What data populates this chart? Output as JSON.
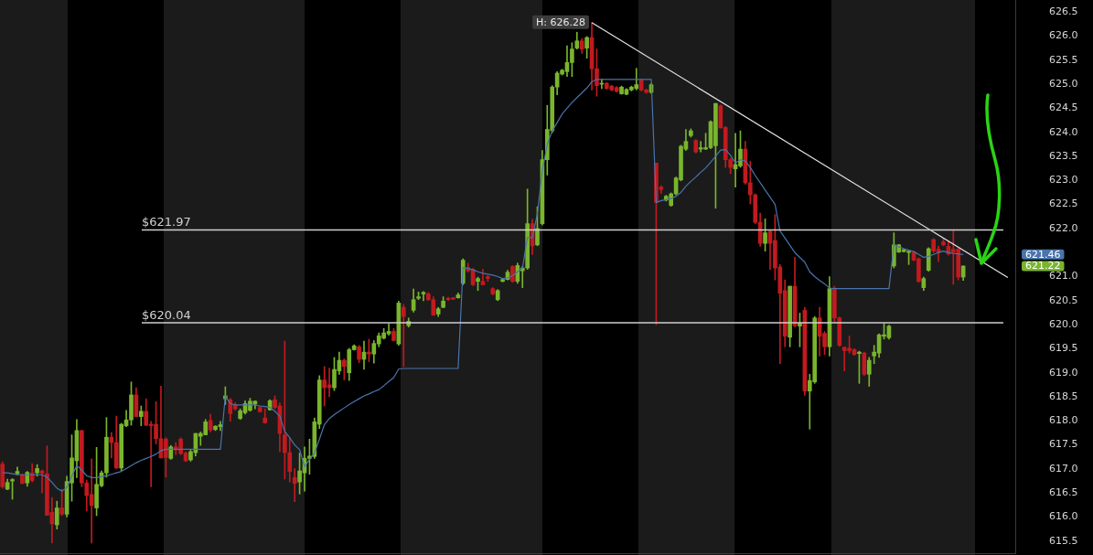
{
  "chart_data": {
    "type": "candlestick",
    "categories": [
      null,
      null,
      null,
      null,
      null,
      null,
      null,
      null,
      null,
      null,
      null,
      null,
      null,
      null,
      null,
      null,
      null,
      null,
      null,
      null,
      null,
      null,
      null,
      null,
      null,
      null,
      null,
      null,
      null,
      null,
      null,
      null,
      null,
      null,
      null,
      null,
      null,
      null,
      null,
      null,
      null,
      null,
      null,
      null,
      null,
      null,
      null,
      null,
      null,
      null,
      null,
      null,
      null,
      null,
      null,
      null,
      null,
      null,
      null,
      null,
      null,
      null,
      null,
      null,
      null,
      null,
      null,
      null,
      null,
      null,
      null,
      null,
      null,
      null,
      null,
      null,
      null,
      null,
      null,
      null,
      null,
      null,
      null,
      null,
      null,
      null,
      null,
      null,
      null,
      null,
      null,
      null,
      null,
      null,
      null,
      null,
      null,
      null,
      null,
      null,
      null,
      null,
      null,
      null,
      null,
      null,
      null,
      null,
      null,
      null,
      null,
      null,
      null,
      null,
      null,
      null,
      null,
      null,
      null,
      null,
      null,
      null,
      null,
      null,
      null,
      null,
      null,
      null,
      null,
      null,
      null,
      null,
      null,
      null,
      null,
      null,
      null,
      null,
      null,
      null,
      null,
      null,
      null,
      null,
      null,
      null,
      null,
      null,
      null,
      null,
      null,
      null,
      null,
      null,
      null,
      null,
      null,
      null,
      null,
      null,
      null,
      null,
      null,
      null,
      null,
      null,
      null,
      null,
      null,
      null,
      null,
      null,
      null,
      null,
      null,
      null,
      null,
      null,
      null,
      null,
      null,
      null,
      null,
      null,
      null,
      null,
      null,
      null,
      null,
      null,
      null,
      null,
      null,
      null,
      null,
      null,
      null,
      null,
      null,
      null,
      null,
      null,
      null,
      null,
      null
    ],
    "ohlc": [
      [
        617.1,
        617.15,
        616.6,
        616.63
      ],
      [
        616.58,
        616.79,
        616.57,
        616.72
      ],
      [
        616.75,
        616.8,
        616.37,
        616.78
      ],
      [
        616.9,
        617.04,
        616.88,
        616.95
      ],
      [
        616.88,
        616.9,
        616.69,
        616.7
      ],
      [
        616.71,
        616.95,
        616.64,
        616.93
      ],
      [
        616.92,
        617.11,
        616.73,
        616.76
      ],
      [
        616.92,
        617.09,
        616.85,
        617.01
      ],
      [
        616.96,
        616.98,
        616.5,
        616.91
      ],
      [
        616.9,
        617.48,
        616.04,
        616.04
      ],
      [
        616.1,
        616.41,
        615.46,
        615.86
      ],
      [
        615.84,
        616.33,
        615.75,
        616.19
      ],
      [
        616.19,
        616.58,
        616.03,
        616.06
      ],
      [
        616.06,
        616.85,
        616.0,
        616.74
      ],
      [
        616.71,
        617.71,
        616.33,
        617.23
      ],
      [
        617.17,
        618.03,
        616.82,
        617.8
      ],
      [
        617.8,
        617.8,
        616.63,
        616.71
      ],
      [
        616.71,
        616.77,
        616.13,
        616.45
      ],
      [
        616.47,
        617.21,
        615.46,
        616.24
      ],
      [
        616.19,
        617.45,
        616.03,
        616.68
      ],
      [
        616.65,
        616.96,
        616.63,
        616.92
      ],
      [
        616.92,
        618.07,
        616.83,
        617.66
      ],
      [
        617.66,
        617.76,
        617.23,
        617.55
      ],
      [
        617.55,
        618.1,
        617.01,
        617.02
      ],
      [
        617.02,
        617.95,
        616.96,
        617.93
      ],
      [
        617.9,
        618.22,
        617.88,
        618.02
      ],
      [
        618.02,
        618.81,
        617.91,
        618.54
      ],
      [
        618.54,
        618.69,
        618.09,
        618.09
      ],
      [
        618.09,
        618.31,
        617.9,
        618.2
      ],
      [
        618.2,
        618.46,
        617.9,
        617.91
      ],
      [
        617.93,
        617.99,
        616.63,
        617.9
      ],
      [
        617.93,
        618.4,
        617.52,
        617.63
      ],
      [
        617.63,
        618.72,
        617.23,
        617.23
      ],
      [
        617.62,
        617.65,
        616.83,
        617.24
      ],
      [
        617.22,
        617.49,
        617.2,
        617.46
      ],
      [
        617.46,
        617.55,
        617.3,
        617.4
      ],
      [
        617.62,
        617.65,
        617.3,
        617.32
      ],
      [
        617.33,
        617.36,
        617.15,
        617.17
      ],
      [
        617.19,
        617.39,
        617.16,
        617.36
      ],
      [
        617.34,
        617.74,
        617.27,
        617.74
      ],
      [
        617.68,
        617.77,
        617.49,
        617.74
      ],
      [
        617.71,
        618.03,
        617.71,
        617.98
      ],
      [
        618.01,
        618.14,
        617.77,
        617.81
      ],
      [
        617.82,
        617.9,
        617.8,
        617.89
      ],
      [
        617.88,
        617.99,
        617.8,
        617.92
      ],
      [
        618.46,
        618.71,
        618.34,
        618.52
      ],
      [
        618.44,
        618.47,
        617.99,
        618.15
      ],
      [
        618.34,
        618.38,
        618.22,
        618.25
      ],
      [
        618.05,
        618.25,
        618.03,
        618.21
      ],
      [
        618.17,
        618.42,
        618.14,
        618.36
      ],
      [
        618.22,
        618.47,
        618.2,
        618.41
      ],
      [
        618.35,
        618.42,
        618.25,
        618.41
      ],
      [
        618.28,
        618.3,
        618.18,
        618.19
      ],
      [
        618.06,
        618.25,
        617.95,
        617.96
      ],
      [
        618.23,
        618.44,
        618.22,
        618.42
      ],
      [
        618.44,
        618.52,
        618.25,
        618.28
      ],
      [
        618.31,
        618.37,
        617.36,
        617.74
      ],
      [
        617.71,
        619.66,
        616.79,
        617.34
      ],
      [
        617.34,
        617.65,
        616.73,
        616.95
      ],
      [
        616.82,
        617.01,
        616.32,
        616.7
      ],
      [
        616.73,
        617.33,
        616.48,
        616.96
      ],
      [
        616.92,
        617.46,
        616.54,
        617.22
      ],
      [
        617.22,
        617.62,
        616.89,
        617.27
      ],
      [
        617.26,
        618.06,
        617.22,
        617.98
      ],
      [
        617.93,
        618.94,
        617.84,
        618.85
      ],
      [
        618.85,
        619.13,
        618.31,
        618.69
      ],
      [
        618.75,
        619.1,
        618.5,
        618.69
      ],
      [
        618.69,
        619.32,
        618.63,
        619.07
      ],
      [
        619.04,
        619.43,
        618.97,
        619.26
      ],
      [
        619.26,
        619.29,
        618.85,
        619.13
      ],
      [
        619.0,
        619.51,
        618.84,
        619.48
      ],
      [
        619.48,
        619.58,
        619.47,
        619.56
      ],
      [
        619.54,
        619.57,
        619.21,
        619.28
      ],
      [
        619.28,
        619.66,
        619.07,
        619.43
      ],
      [
        619.43,
        619.7,
        619.23,
        619.39
      ],
      [
        619.39,
        619.67,
        619.2,
        619.61
      ],
      [
        619.6,
        619.83,
        619.54,
        619.77
      ],
      [
        619.72,
        619.92,
        619.7,
        619.83
      ],
      [
        619.81,
        620.02,
        619.78,
        619.86
      ],
      [
        619.86,
        619.92,
        619.66,
        619.67
      ],
      [
        619.6,
        620.49,
        619.57,
        620.45
      ],
      [
        620.36,
        620.42,
        619.13,
        620.17
      ],
      [
        619.98,
        620.14,
        619.95,
        620.07
      ],
      [
        620.3,
        620.74,
        620.26,
        620.52
      ],
      [
        620.55,
        620.68,
        620.52,
        620.58
      ],
      [
        620.64,
        620.69,
        620.5,
        620.67
      ],
      [
        620.64,
        620.67,
        620.5,
        620.52
      ],
      [
        620.52,
        620.58,
        620.19,
        620.2
      ],
      [
        620.22,
        620.36,
        620.17,
        620.33
      ],
      [
        620.36,
        620.58,
        620.35,
        620.49
      ],
      [
        620.55,
        620.57,
        620.5,
        620.52
      ],
      [
        620.56,
        620.57,
        620.52,
        620.53
      ],
      [
        620.56,
        620.66,
        620.55,
        620.62
      ],
      [
        620.86,
        621.37,
        620.83,
        621.34
      ],
      [
        621.19,
        621.28,
        621.09,
        621.12
      ],
      [
        621.15,
        621.17,
        620.81,
        620.83
      ],
      [
        620.9,
        620.99,
        620.71,
        620.96
      ],
      [
        620.9,
        621.15,
        620.83,
        620.83
      ],
      [
        621.0,
        621.02,
        620.9,
        620.96
      ],
      [
        620.75,
        620.77,
        620.62,
        620.64
      ],
      [
        620.52,
        620.73,
        620.5,
        620.71
      ],
      [
        620.9,
        620.95,
        620.89,
        620.94
      ],
      [
        620.94,
        621.13,
        620.93,
        621.09
      ],
      [
        621.21,
        621.23,
        620.88,
        620.9
      ],
      [
        620.9,
        621.28,
        620.86,
        621.23
      ],
      [
        621.12,
        621.21,
        620.77,
        621.18
      ],
      [
        621.18,
        622.82,
        621.15,
        622.1
      ],
      [
        622.1,
        622.19,
        621.46,
        621.64
      ],
      [
        621.66,
        622.45,
        621.64,
        622.0
      ],
      [
        622.1,
        623.62,
        622.07,
        623.43
      ],
      [
        623.43,
        624.56,
        623.11,
        624.06
      ],
      [
        624.03,
        624.97,
        623.99,
        624.94
      ],
      [
        624.94,
        625.26,
        624.78,
        625.23
      ],
      [
        625.21,
        625.31,
        625.19,
        625.29
      ],
      [
        625.26,
        625.8,
        625.16,
        625.45
      ],
      [
        625.45,
        625.86,
        625.16,
        625.73
      ],
      [
        625.75,
        626.08,
        625.73,
        625.9
      ],
      [
        625.9,
        625.95,
        625.64,
        625.73
      ],
      [
        625.75,
        625.99,
        625.54,
        625.97
      ],
      [
        625.97,
        626.28,
        624.88,
        625.32
      ],
      [
        625.32,
        625.73,
        624.75,
        624.97
      ],
      [
        625.0,
        625.1,
        624.91,
        625.02
      ],
      [
        625.02,
        625.04,
        624.89,
        624.91
      ],
      [
        624.96,
        624.98,
        624.86,
        624.88
      ],
      [
        624.93,
        624.95,
        624.83,
        624.85
      ],
      [
        624.8,
        624.96,
        624.79,
        624.94
      ],
      [
        624.79,
        624.91,
        624.78,
        624.89
      ],
      [
        624.88,
        624.96,
        624.86,
        624.94
      ],
      [
        624.91,
        625.33,
        624.88,
        624.99
      ],
      [
        625.08,
        625.1,
        624.86,
        624.88
      ],
      [
        624.88,
        624.9,
        624.81,
        624.83
      ],
      [
        624.83,
        625.02,
        624.81,
        624.99
      ],
      [
        623.36,
        623.36,
        620.0,
        622.54
      ],
      [
        622.86,
        622.89,
        622.73,
        622.81
      ],
      [
        622.59,
        622.69,
        622.57,
        622.67
      ],
      [
        622.48,
        622.74,
        622.46,
        622.72
      ],
      [
        622.72,
        623.07,
        622.7,
        623.05
      ],
      [
        623.01,
        623.73,
        622.99,
        623.71
      ],
      [
        623.65,
        624.06,
        623.62,
        623.81
      ],
      [
        623.93,
        624.07,
        623.9,
        624.03
      ],
      [
        623.83,
        623.85,
        623.57,
        623.59
      ],
      [
        623.65,
        623.81,
        623.59,
        623.68
      ],
      [
        623.65,
        623.98,
        623.64,
        623.68
      ],
      [
        623.68,
        624.24,
        623.66,
        624.22
      ],
      [
        623.72,
        624.6,
        622.42,
        624.6
      ],
      [
        624.55,
        624.57,
        624.09,
        624.09
      ],
      [
        624.1,
        624.12,
        623.27,
        623.43
      ],
      [
        623.43,
        623.46,
        623.14,
        623.27
      ],
      [
        623.24,
        623.98,
        622.86,
        623.33
      ],
      [
        623.3,
        624.03,
        623.27,
        623.65
      ],
      [
        623.65,
        623.81,
        622.92,
        622.95
      ],
      [
        622.95,
        623.4,
        622.51,
        622.7
      ],
      [
        622.7,
        622.72,
        622.1,
        622.13
      ],
      [
        622.13,
        622.32,
        621.63,
        621.69
      ],
      [
        621.69,
        622.2,
        621.53,
        621.91
      ],
      [
        621.94,
        621.97,
        621.15,
        621.69
      ],
      [
        621.75,
        622.29,
        620.93,
        621.18
      ],
      [
        621.2,
        621.25,
        619.19,
        620.65
      ],
      [
        620.71,
        620.93,
        619.54,
        619.76
      ],
      [
        619.74,
        620.8,
        619.54,
        620.8
      ],
      [
        620.8,
        621.4,
        619.95,
        619.98
      ],
      [
        619.97,
        620.24,
        619.54,
        620.03
      ],
      [
        620.3,
        620.36,
        618.53,
        618.62
      ],
      [
        618.62,
        618.97,
        617.83,
        618.84
      ],
      [
        618.81,
        620.17,
        618.78,
        620.14
      ],
      [
        620.14,
        620.36,
        619.35,
        619.76
      ],
      [
        619.82,
        619.86,
        619.38,
        619.54
      ],
      [
        619.54,
        621.0,
        619.35,
        620.75
      ],
      [
        620.75,
        620.8,
        620.05,
        620.14
      ],
      [
        620.14,
        620.16,
        619.55,
        619.57
      ],
      [
        619.53,
        619.54,
        619.04,
        619.46
      ],
      [
        619.51,
        619.76,
        619.41,
        619.46
      ],
      [
        619.48,
        619.5,
        619.36,
        619.38
      ],
      [
        619.4,
        619.45,
        618.78,
        619.43
      ],
      [
        619.41,
        619.43,
        618.94,
        618.97
      ],
      [
        618.97,
        619.32,
        618.72,
        619.26
      ],
      [
        619.35,
        619.57,
        619.19,
        619.43
      ],
      [
        619.41,
        619.81,
        619.32,
        619.79
      ],
      [
        619.76,
        620.02,
        619.7,
        619.79
      ],
      [
        619.73,
        619.99,
        619.7,
        619.97
      ],
      [
        621.22,
        621.91,
        621.18,
        621.66
      ],
      [
        621.51,
        621.67,
        621.5,
        621.66
      ],
      [
        621.52,
        621.57,
        621.51,
        621.56
      ],
      [
        621.5,
        621.53,
        621.25,
        621.53
      ],
      [
        621.5,
        621.52,
        621.33,
        621.34
      ],
      [
        621.37,
        621.39,
        620.88,
        620.9
      ],
      [
        620.77,
        620.99,
        620.71,
        620.96
      ],
      [
        621.13,
        621.6,
        621.11,
        621.58
      ],
      [
        621.77,
        621.79,
        621.5,
        621.53
      ],
      [
        621.57,
        621.63,
        621.31,
        621.5
      ],
      [
        621.72,
        621.78,
        621.64,
        621.66
      ],
      [
        621.63,
        621.75,
        621.45,
        621.47
      ],
      [
        621.57,
        621.97,
        620.84,
        621.5
      ],
      [
        621.57,
        621.59,
        620.93,
        620.99
      ],
      [
        620.99,
        621.22,
        620.92,
        621.22
      ],
      null,
      null,
      null,
      null,
      null,
      null,
      null,
      null,
      null,
      null
    ],
    "colors": [
      "#c11a1f",
      "#79b52d",
      "#79b52d",
      "#79b52d",
      "#c11a1f",
      "#79b52d",
      "#c11a1f",
      "#79b52d",
      "#c11a1f",
      "#c11a1f",
      "#c11a1f",
      "#79b52d",
      "#c11a1f",
      "#79b52d",
      "#79b52d",
      "#79b52d",
      "#c11a1f",
      "#c11a1f",
      "#c11a1f",
      "#79b52d",
      "#79b52d",
      "#79b52d",
      "#c11a1f",
      "#c11a1f",
      "#79b52d",
      "#79b52d",
      "#79b52d",
      "#c11a1f",
      "#79b52d",
      "#c11a1f",
      "#c11a1f",
      "#c11a1f",
      "#c11a1f",
      "#c11a1f",
      "#79b52d",
      "#c11a1f",
      "#c11a1f",
      "#c11a1f",
      "#79b52d",
      "#79b52d",
      "#79b52d",
      "#79b52d",
      "#c11a1f",
      "#79b52d",
      "#79b52d",
      "#79b52d",
      "#c11a1f",
      "#c11a1f",
      "#79b52d",
      "#79b52d",
      "#79b52d",
      "#79b52d",
      "#c11a1f",
      "#c11a1f",
      "#79b52d",
      "#c11a1f",
      "#c11a1f",
      "#c11a1f",
      "#c11a1f",
      "#c11a1f",
      "#79b52d",
      "#79b52d",
      "#79b52d",
      "#79b52d",
      "#79b52d",
      "#c11a1f",
      "#c11a1f",
      "#79b52d",
      "#79b52d",
      "#c11a1f",
      "#79b52d",
      "#79b52d",
      "#c11a1f",
      "#79b52d",
      "#c11a1f",
      "#79b52d",
      "#79b52d",
      "#79b52d",
      "#79b52d",
      "#c11a1f",
      "#79b52d",
      "#c11a1f",
      "#79b52d",
      "#79b52d",
      "#79b52d",
      "#79b52d",
      "#c11a1f",
      "#c11a1f",
      "#79b52d",
      "#79b52d",
      "#c11a1f",
      "#c11a1f",
      "#79b52d",
      "#79b52d",
      "#c11a1f",
      "#c11a1f",
      "#79b52d",
      "#c11a1f",
      "#c11a1f",
      "#c11a1f",
      "#79b52d",
      "#79b52d",
      "#79b52d",
      "#c11a1f",
      "#79b52d",
      "#79b52d",
      "#79b52d",
      "#c11a1f",
      "#79b52d",
      "#79b52d",
      "#79b52d",
      "#79b52d",
      "#79b52d",
      "#79b52d",
      "#79b52d",
      "#79b52d",
      "#79b52d",
      "#c11a1f",
      "#79b52d",
      "#c11a1f",
      "#c11a1f",
      "#79b52d",
      "#c11a1f",
      "#c11a1f",
      "#c11a1f",
      "#79b52d",
      "#79b52d",
      "#79b52d",
      "#79b52d",
      "#c11a1f",
      "#c11a1f",
      "#79b52d",
      "#c11a1f",
      "#c11a1f",
      "#79b52d",
      "#79b52d",
      "#79b52d",
      "#79b52d",
      "#79b52d",
      "#79b52d",
      "#c11a1f",
      "#79b52d",
      "#79b52d",
      "#79b52d",
      "#79b52d",
      "#c11a1f",
      "#c11a1f",
      "#c11a1f",
      "#79b52d",
      "#79b52d",
      "#c11a1f",
      "#c11a1f",
      "#c11a1f",
      "#c11a1f",
      "#79b52d",
      "#c11a1f",
      "#c11a1f",
      "#c11a1f",
      "#c11a1f",
      "#79b52d",
      "#c11a1f",
      "#79b52d",
      "#c11a1f",
      "#79b52d",
      "#79b52d",
      "#c11a1f",
      "#c11a1f",
      "#79b52d",
      "#c11a1f",
      "#c11a1f",
      "#c11a1f",
      "#c11a1f",
      "#c11a1f",
      "#79b52d",
      "#c11a1f",
      "#79b52d",
      "#79b52d",
      "#79b52d",
      "#79b52d",
      "#79b52d",
      "#79b52d",
      "#79b52d",
      "#79b52d",
      "#79b52d",
      "#c11a1f",
      "#c11a1f",
      "#79b52d",
      "#79b52d",
      "#c11a1f",
      "#c11a1f",
      "#c11a1f",
      "#c11a1f",
      "#c11a1f",
      "#c11a1f",
      "#79b52d",
      null,
      null,
      null,
      null,
      null,
      null,
      null,
      null,
      null,
      null
    ],
    "value_labels": [
      null,
      null,
      null,
      null,
      null,
      null,
      null,
      null,
      null,
      null,
      null,
      null,
      null,
      null,
      null,
      null,
      null,
      null,
      null,
      null,
      null,
      null,
      null,
      null,
      null,
      null,
      null,
      null,
      null,
      null,
      null,
      null,
      null,
      null,
      null,
      null,
      null,
      null,
      null,
      null,
      null,
      null,
      null,
      null,
      null,
      null,
      null,
      null,
      null,
      null,
      null,
      null,
      null,
      null,
      null,
      null,
      null,
      null,
      null,
      null,
      null,
      null,
      null,
      null,
      null,
      null,
      null,
      null,
      null,
      null,
      null,
      null,
      null,
      null,
      null,
      null,
      null,
      null,
      null,
      null,
      null,
      null,
      null,
      null,
      null,
      null,
      null,
      null,
      null,
      null,
      null,
      null,
      null,
      null,
      null,
      null,
      null,
      null,
      null,
      null,
      null,
      null,
      null,
      null,
      null,
      null,
      null,
      null,
      null,
      null,
      null,
      null,
      null,
      null,
      null,
      null,
      null,
      null,
      null,
      null,
      null,
      null,
      null,
      null,
      null,
      null,
      null,
      null,
      null,
      null,
      null,
      null,
      null,
      null,
      null,
      null,
      null,
      null,
      null,
      null,
      null,
      null,
      null,
      null,
      null,
      null,
      null,
      null,
      null,
      null,
      null,
      null,
      null,
      null,
      null,
      null,
      null,
      null,
      null,
      null,
      null,
      null,
      null,
      null,
      null,
      null,
      null,
      null,
      null,
      null,
      null,
      null,
      null,
      null,
      null,
      null,
      null,
      null,
      null,
      null,
      null,
      null,
      null,
      null,
      null,
      null,
      null,
      null,
      null,
      null,
      null,
      null,
      null,
      null,
      "621.22",
      null,
      null,
      null,
      null,
      null,
      null,
      null,
      null,
      null,
      null
    ],
    "series": [
      {
        "type": "line",
        "color": "#4a74ab",
        "values": [
          616.92,
          616.92,
          616.9,
          616.88,
          616.88,
          616.88,
          616.88,
          616.88,
          616.88,
          616.83,
          616.72,
          616.6,
          616.54,
          616.62,
          616.85,
          617.07,
          616.98,
          616.86,
          616.82,
          616.82,
          616.84,
          616.86,
          616.89,
          616.92,
          616.95,
          617.01,
          617.07,
          617.13,
          617.18,
          617.22,
          617.26,
          617.31,
          617.38,
          617.41,
          617.41,
          617.41,
          617.41,
          617.41,
          617.41,
          617.41,
          617.41,
          617.41,
          617.41,
          617.41,
          617.41,
          618.52,
          618.36,
          618.33,
          618.33,
          618.33,
          618.33,
          618.33,
          618.31,
          618.3,
          618.28,
          618.2,
          618.1,
          617.78,
          617.65,
          617.5,
          617.4,
          617.05,
          617.2,
          617.33,
          617.62,
          617.92,
          618.05,
          618.13,
          618.2,
          618.27,
          618.34,
          618.4,
          618.46,
          618.52,
          618.56,
          618.61,
          618.65,
          618.73,
          618.82,
          618.9,
          619.08,
          619.09,
          619.09,
          619.09,
          619.09,
          619.09,
          619.09,
          619.09,
          619.09,
          619.09,
          619.09,
          619.09,
          619.09,
          621.19,
          621.17,
          621.14,
          621.1,
          621.07,
          621.05,
          621.03,
          621.0,
          620.96,
          620.97,
          621.02,
          621.1,
          621.18,
          621.81,
          621.81,
          622.3,
          623.2,
          623.75,
          624.03,
          624.2,
          624.38,
          624.5,
          624.62,
          624.72,
          624.82,
          624.92,
          625.05,
          625.1,
          625.1,
          625.1,
          625.1,
          625.1,
          625.1,
          625.1,
          625.1,
          625.1,
          625.1,
          625.1,
          625.1,
          622.54,
          622.58,
          622.6,
          622.62,
          622.67,
          622.75,
          622.88,
          622.98,
          623.07,
          623.17,
          623.26,
          623.38,
          623.5,
          623.63,
          623.64,
          623.52,
          623.36,
          623.43,
          623.4,
          623.27,
          623.1,
          622.95,
          622.8,
          622.65,
          622.5,
          621.95,
          621.8,
          621.65,
          621.5,
          621.4,
          621.3,
          621.1,
          621.0,
          620.92,
          620.85,
          620.76,
          620.75,
          620.75,
          620.75,
          620.75,
          620.75,
          620.75,
          620.75,
          620.75,
          620.75,
          620.75,
          620.75,
          620.75,
          621.66,
          621.62,
          621.58,
          621.55,
          621.52,
          621.46,
          621.4,
          621.42,
          621.46,
          621.5,
          621.53,
          621.5,
          621.48,
          621.47,
          621.46,
          null,
          null,
          null,
          null,
          null,
          null,
          null,
          null,
          null,
          null
        ]
      },
      {
        "type": "line",
        "color": "#e6e6e6",
        "values": [
          null,
          null,
          null,
          null,
          null,
          null,
          null,
          null,
          null,
          null,
          null,
          null,
          null,
          null,
          null,
          null,
          null,
          null,
          null,
          null,
          null,
          null,
          null,
          null,
          null,
          null,
          null,
          null,
          null,
          null,
          null,
          null,
          null,
          null,
          null,
          null,
          null,
          null,
          null,
          null,
          null,
          null,
          null,
          null,
          null,
          null,
          null,
          null,
          null,
          null,
          null,
          null,
          null,
          null,
          null,
          null,
          null,
          null,
          null,
          null,
          null,
          null,
          null,
          null,
          null,
          null,
          null,
          null,
          null,
          null,
          null,
          null,
          null,
          null,
          null,
          null,
          null,
          null,
          null,
          null,
          null,
          null,
          null,
          null,
          null,
          null,
          null,
          null,
          null,
          null,
          null,
          null,
          null,
          null,
          null,
          null,
          null,
          null,
          null,
          null,
          null,
          null,
          null,
          null,
          null,
          null,
          null,
          null,
          null,
          null,
          null,
          null,
          null,
          null,
          null,
          null,
          null,
          null,
          null,
          626.28,
          null,
          null,
          null,
          null,
          null,
          null,
          null,
          null,
          null,
          null,
          null,
          null,
          null,
          null,
          null,
          null,
          null,
          null,
          null,
          null,
          null,
          null,
          null,
          null,
          null,
          null,
          null,
          null,
          null,
          null,
          null,
          null,
          null,
          null,
          null,
          null,
          null,
          null,
          null,
          null,
          null,
          null,
          null,
          null,
          null,
          null,
          null,
          null,
          null,
          null,
          null,
          null,
          null,
          null,
          null,
          null,
          null,
          null,
          null,
          null,
          null,
          null,
          null,
          null,
          null,
          null,
          null,
          null,
          null,
          null,
          null,
          null,
          null,
          null,
          null,
          null,
          null,
          null,
          null,
          null,
          null,
          null,
          null,
          620.98,
          null
        ]
      }
    ],
    "ylim": [
      615.25,
      626.75
    ],
    "yticks": [
      {
        "value": 615.5,
        "label": "615.5"
      },
      {
        "value": 616,
        "label": "616.0"
      },
      {
        "value": 616.5,
        "label": "616.5"
      },
      {
        "value": 617,
        "label": "617.0"
      },
      {
        "value": 617.5,
        "label": "617.5"
      },
      {
        "value": 618,
        "label": "618.0"
      },
      {
        "value": 618.5,
        "label": "618.5"
      },
      {
        "value": 619,
        "label": "619.0"
      },
      {
        "value": 619.5,
        "label": "619.5"
      },
      {
        "value": 620,
        "label": "620.0"
      },
      {
        "value": 620.5,
        "label": "620.5"
      },
      {
        "value": 621,
        "label": "621.0"
      },
      {
        "value": 622,
        "label": "622.0"
      },
      {
        "value": 622.5,
        "label": "622.5"
      },
      {
        "value": 623,
        "label": "623.0"
      },
      {
        "value": 623.5,
        "label": "623.5"
      },
      {
        "value": 624,
        "label": "624.0"
      },
      {
        "value": 624.5,
        "label": "624.5"
      },
      {
        "value": 625,
        "label": "625.0"
      },
      {
        "value": 625.5,
        "label": "625.5"
      },
      {
        "value": 626,
        "label": "626.0"
      },
      {
        "value": 626.5,
        "label": "626.5"
      }
    ],
    "ref_lines": [
      {
        "axis": "y",
        "value": 621.97,
        "label": "$621.97",
        "color": "#cfcfcf"
      },
      {
        "axis": "y",
        "value": 620.04,
        "label": "$620.04",
        "color": "#cfcfcf"
      }
    ],
    "annotations": [
      "H: 626.28",
      "621.46"
    ]
  }
}
